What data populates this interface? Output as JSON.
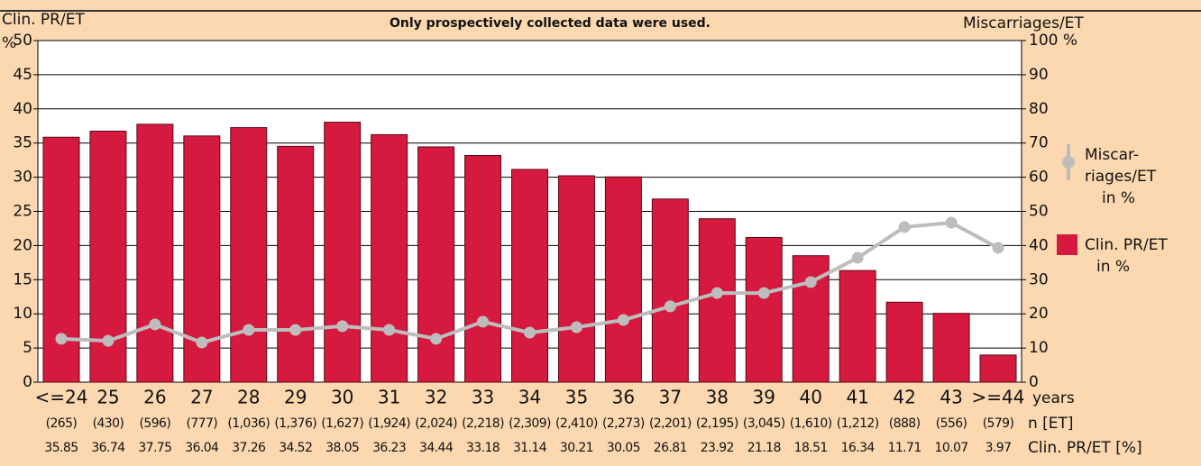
{
  "chart_data": {
    "type": "bar",
    "title": "Only prospectively collected data were used.",
    "y_label": "Clin. PR/ET",
    "y_unit": "%",
    "y2_label": "Miscarriages/ET",
    "x_unit": "years",
    "categories": [
      "<=24",
      "25",
      "26",
      "27",
      "28",
      "29",
      "30",
      "31",
      "32",
      "33",
      "34",
      "35",
      "36",
      "37",
      "38",
      "39",
      "40",
      "41",
      "42",
      "43",
      ">=44"
    ],
    "series": [
      {
        "name": [
          "Clin. PR/ET",
          "in %"
        ],
        "type": "bar",
        "color": "#d6193e",
        "values": [
          35.85,
          36.74,
          37.75,
          36.04,
          37.26,
          34.52,
          38.05,
          36.23,
          34.44,
          33.18,
          31.14,
          30.21,
          30.05,
          26.81,
          23.92,
          21.18,
          18.51,
          16.34,
          11.71,
          10.07,
          3.97
        ]
      },
      {
        "name": [
          "Miscar-",
          "riages/ET",
          "in %"
        ],
        "type": "line",
        "axis": "y2",
        "color": "#bdbdbd",
        "values": [
          12.7,
          12.1,
          16.9,
          11.6,
          15.3,
          15.3,
          16.4,
          15.3,
          12.7,
          17.7,
          14.5,
          16.1,
          18.2,
          22.2,
          26.1,
          26.1,
          29.3,
          36.4,
          45.4,
          46.7,
          39.3
        ]
      }
    ],
    "table_rows": [
      {
        "label": "n [ET]",
        "cells": [
          "(265)",
          "(430)",
          "(596)",
          "(777)",
          "(1,036)",
          "(1,376)",
          "(1,627)",
          "(1,924)",
          "(2,024)",
          "(2,218)",
          "(2,309)",
          "(2,410)",
          "(2,273)",
          "(2,201)",
          "(2,195)",
          "(3,045)",
          "(1,610)",
          "(1,212)",
          "(888)",
          "(556)",
          "(579)"
        ]
      },
      {
        "label": "Clin. PR/ET [%]"
      }
    ],
    "ylim": [
      0,
      50
    ],
    "yticks": [
      0,
      5,
      10,
      15,
      20,
      25,
      30,
      35,
      40,
      45,
      50
    ],
    "y2lim": [
      0,
      100
    ],
    "y2ticks": [
      0,
      10,
      20,
      30,
      40,
      50,
      60,
      70,
      80,
      90,
      {
        "value": 100,
        "label": "100 %"
      }
    ],
    "grid": true
  }
}
